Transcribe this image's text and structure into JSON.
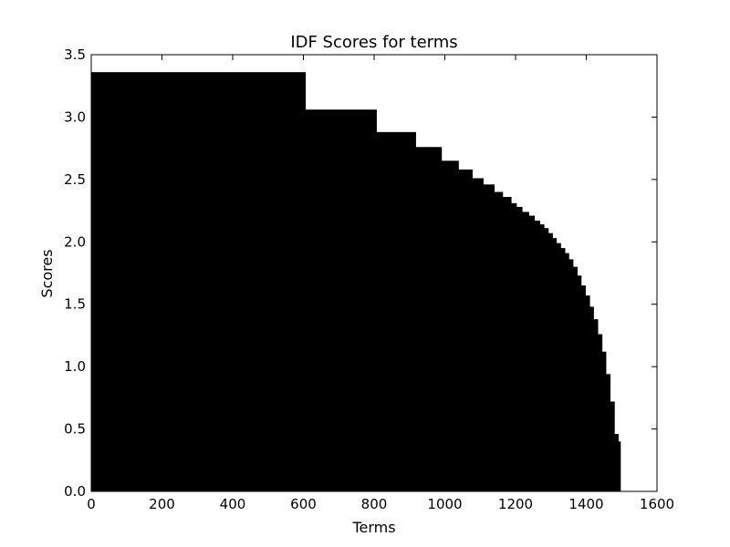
{
  "chart_data": {
    "type": "bar",
    "title": "IDF Scores for terms",
    "xlabel": "Terms",
    "ylabel": "Scores",
    "xlim": [
      0,
      1600
    ],
    "ylim": [
      0,
      3.5
    ],
    "xticks": [
      0,
      200,
      400,
      600,
      800,
      1000,
      1200,
      1400,
      1600
    ],
    "xtick_labels": [
      "0",
      "200",
      "400",
      "600",
      "800",
      "1000",
      "1200",
      "1400",
      "1600"
    ],
    "yticks": [
      0.0,
      0.5,
      1.0,
      1.5,
      2.0,
      2.5,
      3.0,
      3.5
    ],
    "ytick_labels": [
      "0.0",
      "0.5",
      "1.0",
      "1.5",
      "2.0",
      "2.5",
      "3.0",
      "3.5"
    ],
    "grid": false,
    "legend": "none",
    "bar_color": "#000000",
    "series": [
      {
        "steps": [
          {
            "x_start": 0,
            "x_end": 605,
            "value": 3.36
          },
          {
            "x_start": 605,
            "x_end": 806,
            "value": 3.06
          },
          {
            "x_start": 806,
            "x_end": 917,
            "value": 2.88
          },
          {
            "x_start": 917,
            "x_end": 990,
            "value": 2.76
          },
          {
            "x_start": 990,
            "x_end": 1038,
            "value": 2.65
          },
          {
            "x_start": 1038,
            "x_end": 1077,
            "value": 2.58
          },
          {
            "x_start": 1077,
            "x_end": 1108,
            "value": 2.51
          },
          {
            "x_start": 1108,
            "x_end": 1139,
            "value": 2.46
          },
          {
            "x_start": 1139,
            "x_end": 1163,
            "value": 2.4
          },
          {
            "x_start": 1163,
            "x_end": 1187,
            "value": 2.36
          },
          {
            "x_start": 1187,
            "x_end": 1202,
            "value": 2.31
          },
          {
            "x_start": 1202,
            "x_end": 1218,
            "value": 2.28
          },
          {
            "x_start": 1218,
            "x_end": 1237,
            "value": 2.24
          },
          {
            "x_start": 1237,
            "x_end": 1253,
            "value": 2.21
          },
          {
            "x_start": 1253,
            "x_end": 1268,
            "value": 2.17
          },
          {
            "x_start": 1268,
            "x_end": 1280,
            "value": 2.14
          },
          {
            "x_start": 1280,
            "x_end": 1292,
            "value": 2.11
          },
          {
            "x_start": 1292,
            "x_end": 1304,
            "value": 2.07
          },
          {
            "x_start": 1304,
            "x_end": 1315,
            "value": 2.03
          },
          {
            "x_start": 1315,
            "x_end": 1327,
            "value": 1.99
          },
          {
            "x_start": 1327,
            "x_end": 1339,
            "value": 1.95
          },
          {
            "x_start": 1339,
            "x_end": 1350,
            "value": 1.91
          },
          {
            "x_start": 1350,
            "x_end": 1362,
            "value": 1.86
          },
          {
            "x_start": 1362,
            "x_end": 1374,
            "value": 1.8
          },
          {
            "x_start": 1374,
            "x_end": 1385,
            "value": 1.73
          },
          {
            "x_start": 1385,
            "x_end": 1397,
            "value": 1.65
          },
          {
            "x_start": 1397,
            "x_end": 1409,
            "value": 1.57
          },
          {
            "x_start": 1409,
            "x_end": 1420,
            "value": 1.48
          },
          {
            "x_start": 1420,
            "x_end": 1432,
            "value": 1.38
          },
          {
            "x_start": 1432,
            "x_end": 1444,
            "value": 1.26
          },
          {
            "x_start": 1444,
            "x_end": 1455,
            "value": 1.12
          },
          {
            "x_start": 1455,
            "x_end": 1467,
            "value": 0.94
          },
          {
            "x_start": 1467,
            "x_end": 1479,
            "value": 0.72
          },
          {
            "x_start": 1479,
            "x_end": 1490,
            "value": 0.46
          },
          {
            "x_start": 1490,
            "x_end": 1496,
            "value": 0.4
          }
        ]
      }
    ]
  }
}
